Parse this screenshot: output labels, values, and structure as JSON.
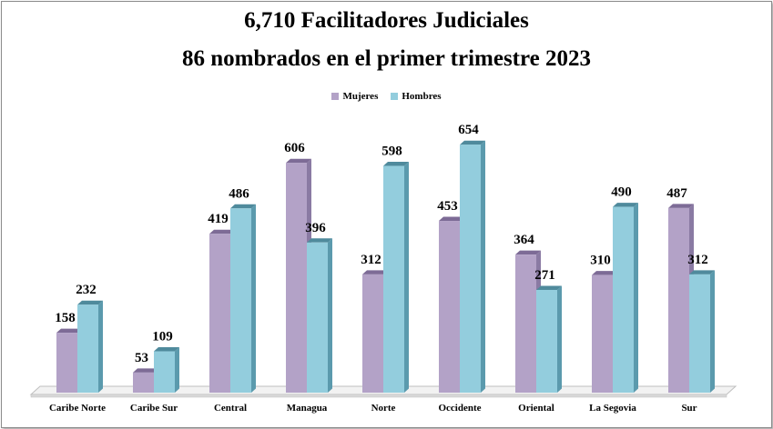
{
  "chart_data": {
    "type": "bar",
    "title": "6,710 Facilitadores Judiciales",
    "subtitle": "86 nombrados en el primer trimestre 2023",
    "categories": [
      "Caribe Norte",
      "Caribe Sur",
      "Central",
      "Managua",
      "Norte",
      "Occidente",
      "Oriental",
      "La Segovia",
      "Sur"
    ],
    "series": [
      {
        "name": "Mujeres",
        "values": [
          158,
          53,
          419,
          606,
          312,
          453,
          364,
          310,
          487
        ],
        "color": "#b3a2c7",
        "side_color": "#8a7aa3",
        "top_color": "#7d6b96"
      },
      {
        "name": "Hombres",
        "values": [
          232,
          109,
          486,
          396,
          598,
          654,
          271,
          490,
          312
        ],
        "color": "#93cddd",
        "side_color": "#5b9aad",
        "top_color": "#4f8a9c"
      }
    ],
    "ylim": [
      0,
      700
    ],
    "legend": "top",
    "grid": false,
    "style": "3d-columns"
  }
}
